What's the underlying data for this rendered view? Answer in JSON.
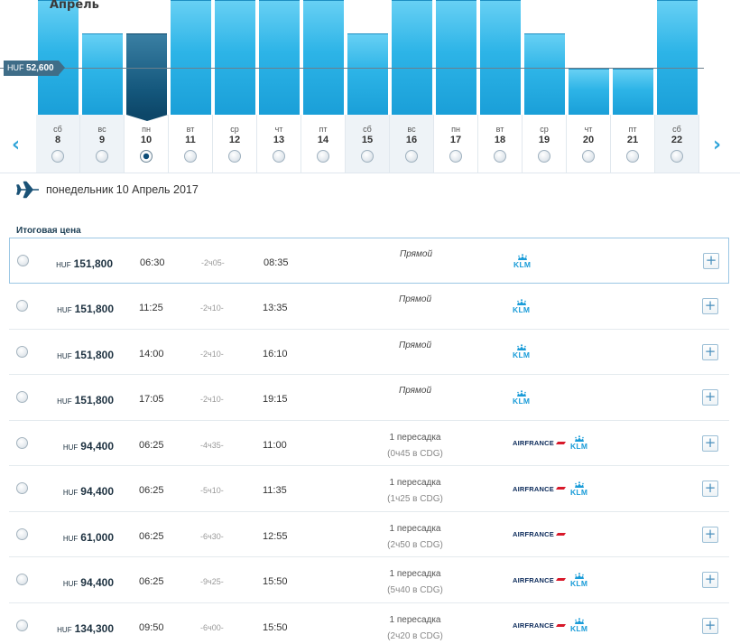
{
  "calendar": {
    "month": "Апрель",
    "reference_price": {
      "currency": "HUF",
      "amount": "52,600"
    },
    "selected_day_index": 2,
    "days": [
      {
        "dow": "сб",
        "num": "8",
        "weekend": true,
        "price_level": 1.0
      },
      {
        "dow": "вс",
        "num": "9",
        "weekend": true,
        "price_level": 0.71
      },
      {
        "dow": "пн",
        "num": "10",
        "weekend": false,
        "price_level": 0.71
      },
      {
        "dow": "вт",
        "num": "11",
        "weekend": false,
        "price_level": 1.0
      },
      {
        "dow": "ср",
        "num": "12",
        "weekend": false,
        "price_level": 1.0
      },
      {
        "dow": "чт",
        "num": "13",
        "weekend": false,
        "price_level": 1.0
      },
      {
        "dow": "пт",
        "num": "14",
        "weekend": false,
        "price_level": 1.0
      },
      {
        "dow": "сб",
        "num": "15",
        "weekend": true,
        "price_level": 0.71
      },
      {
        "dow": "вс",
        "num": "16",
        "weekend": true,
        "price_level": 1.0
      },
      {
        "dow": "пн",
        "num": "17",
        "weekend": false,
        "price_level": 1.0
      },
      {
        "dow": "вт",
        "num": "18",
        "weekend": false,
        "price_level": 1.0
      },
      {
        "dow": "ср",
        "num": "19",
        "weekend": false,
        "price_level": 0.71
      },
      {
        "dow": "чт",
        "num": "20",
        "weekend": false,
        "price_level": 0.4
      },
      {
        "dow": "пт",
        "num": "21",
        "weekend": false,
        "price_level": 0.4
      },
      {
        "dow": "сб",
        "num": "22",
        "weekend": true,
        "price_level": 1.0
      }
    ],
    "colors": {
      "bar": "#2db4e7",
      "bar_selected": "#0d4769"
    }
  },
  "date_heading": "понедельник 10 Апрель 2017",
  "total_price_label": "Итоговая цена",
  "flights": [
    {
      "currency": "HUF",
      "price": "151,800",
      "dep": "06:30",
      "duration": "-2ч05-",
      "arr": "08:35",
      "stops": "Прямой",
      "stops_detail": "",
      "airlines": [
        "KLM"
      ],
      "highlight": true
    },
    {
      "currency": "HUF",
      "price": "151,800",
      "dep": "11:25",
      "duration": "-2ч10-",
      "arr": "13:35",
      "stops": "Прямой",
      "stops_detail": "",
      "airlines": [
        "KLM"
      ],
      "highlight": false
    },
    {
      "currency": "HUF",
      "price": "151,800",
      "dep": "14:00",
      "duration": "-2ч10-",
      "arr": "16:10",
      "stops": "Прямой",
      "stops_detail": "",
      "airlines": [
        "KLM"
      ],
      "highlight": false
    },
    {
      "currency": "HUF",
      "price": "151,800",
      "dep": "17:05",
      "duration": "-2ч10-",
      "arr": "19:15",
      "stops": "Прямой",
      "stops_detail": "",
      "airlines": [
        "KLM"
      ],
      "highlight": false
    },
    {
      "currency": "HUF",
      "price": "94,400",
      "dep": "06:25",
      "duration": "-4ч35-",
      "arr": "11:00",
      "stops": "1 пересадка",
      "stops_detail": "(0ч45 в CDG)",
      "airlines": [
        "AIRFRANCE",
        "KLM"
      ],
      "highlight": false
    },
    {
      "currency": "HUF",
      "price": "94,400",
      "dep": "06:25",
      "duration": "-5ч10-",
      "arr": "11:35",
      "stops": "1 пересадка",
      "stops_detail": "(1ч25 в CDG)",
      "airlines": [
        "AIRFRANCE",
        "KLM"
      ],
      "highlight": false
    },
    {
      "currency": "HUF",
      "price": "61,000",
      "dep": "06:25",
      "duration": "-6ч30-",
      "arr": "12:55",
      "stops": "1 пересадка",
      "stops_detail": "(2ч50 в CDG)",
      "airlines": [
        "AIRFRANCE"
      ],
      "highlight": false
    },
    {
      "currency": "HUF",
      "price": "94,400",
      "dep": "06:25",
      "duration": "-9ч25-",
      "arr": "15:50",
      "stops": "1 пересадка",
      "stops_detail": "(5ч40 в CDG)",
      "airlines": [
        "AIRFRANCE",
        "KLM"
      ],
      "highlight": false
    },
    {
      "currency": "HUF",
      "price": "134,300",
      "dep": "09:50",
      "duration": "-6ч00-",
      "arr": "15:50",
      "stops": "1 пересадка",
      "stops_detail": "(2ч20 в CDG)",
      "airlines": [
        "AIRFRANCE",
        "KLM"
      ],
      "highlight": false
    }
  ],
  "icons": {
    "prev": "chevron-left-icon",
    "next": "chevron-right-icon",
    "plane": "airplane-icon",
    "expand": "plus-icon"
  },
  "labels": {
    "expand": "+",
    "prev": "‹",
    "next": "›",
    "airfrance": "AIRFRANCE",
    "klm": "KLM"
  }
}
